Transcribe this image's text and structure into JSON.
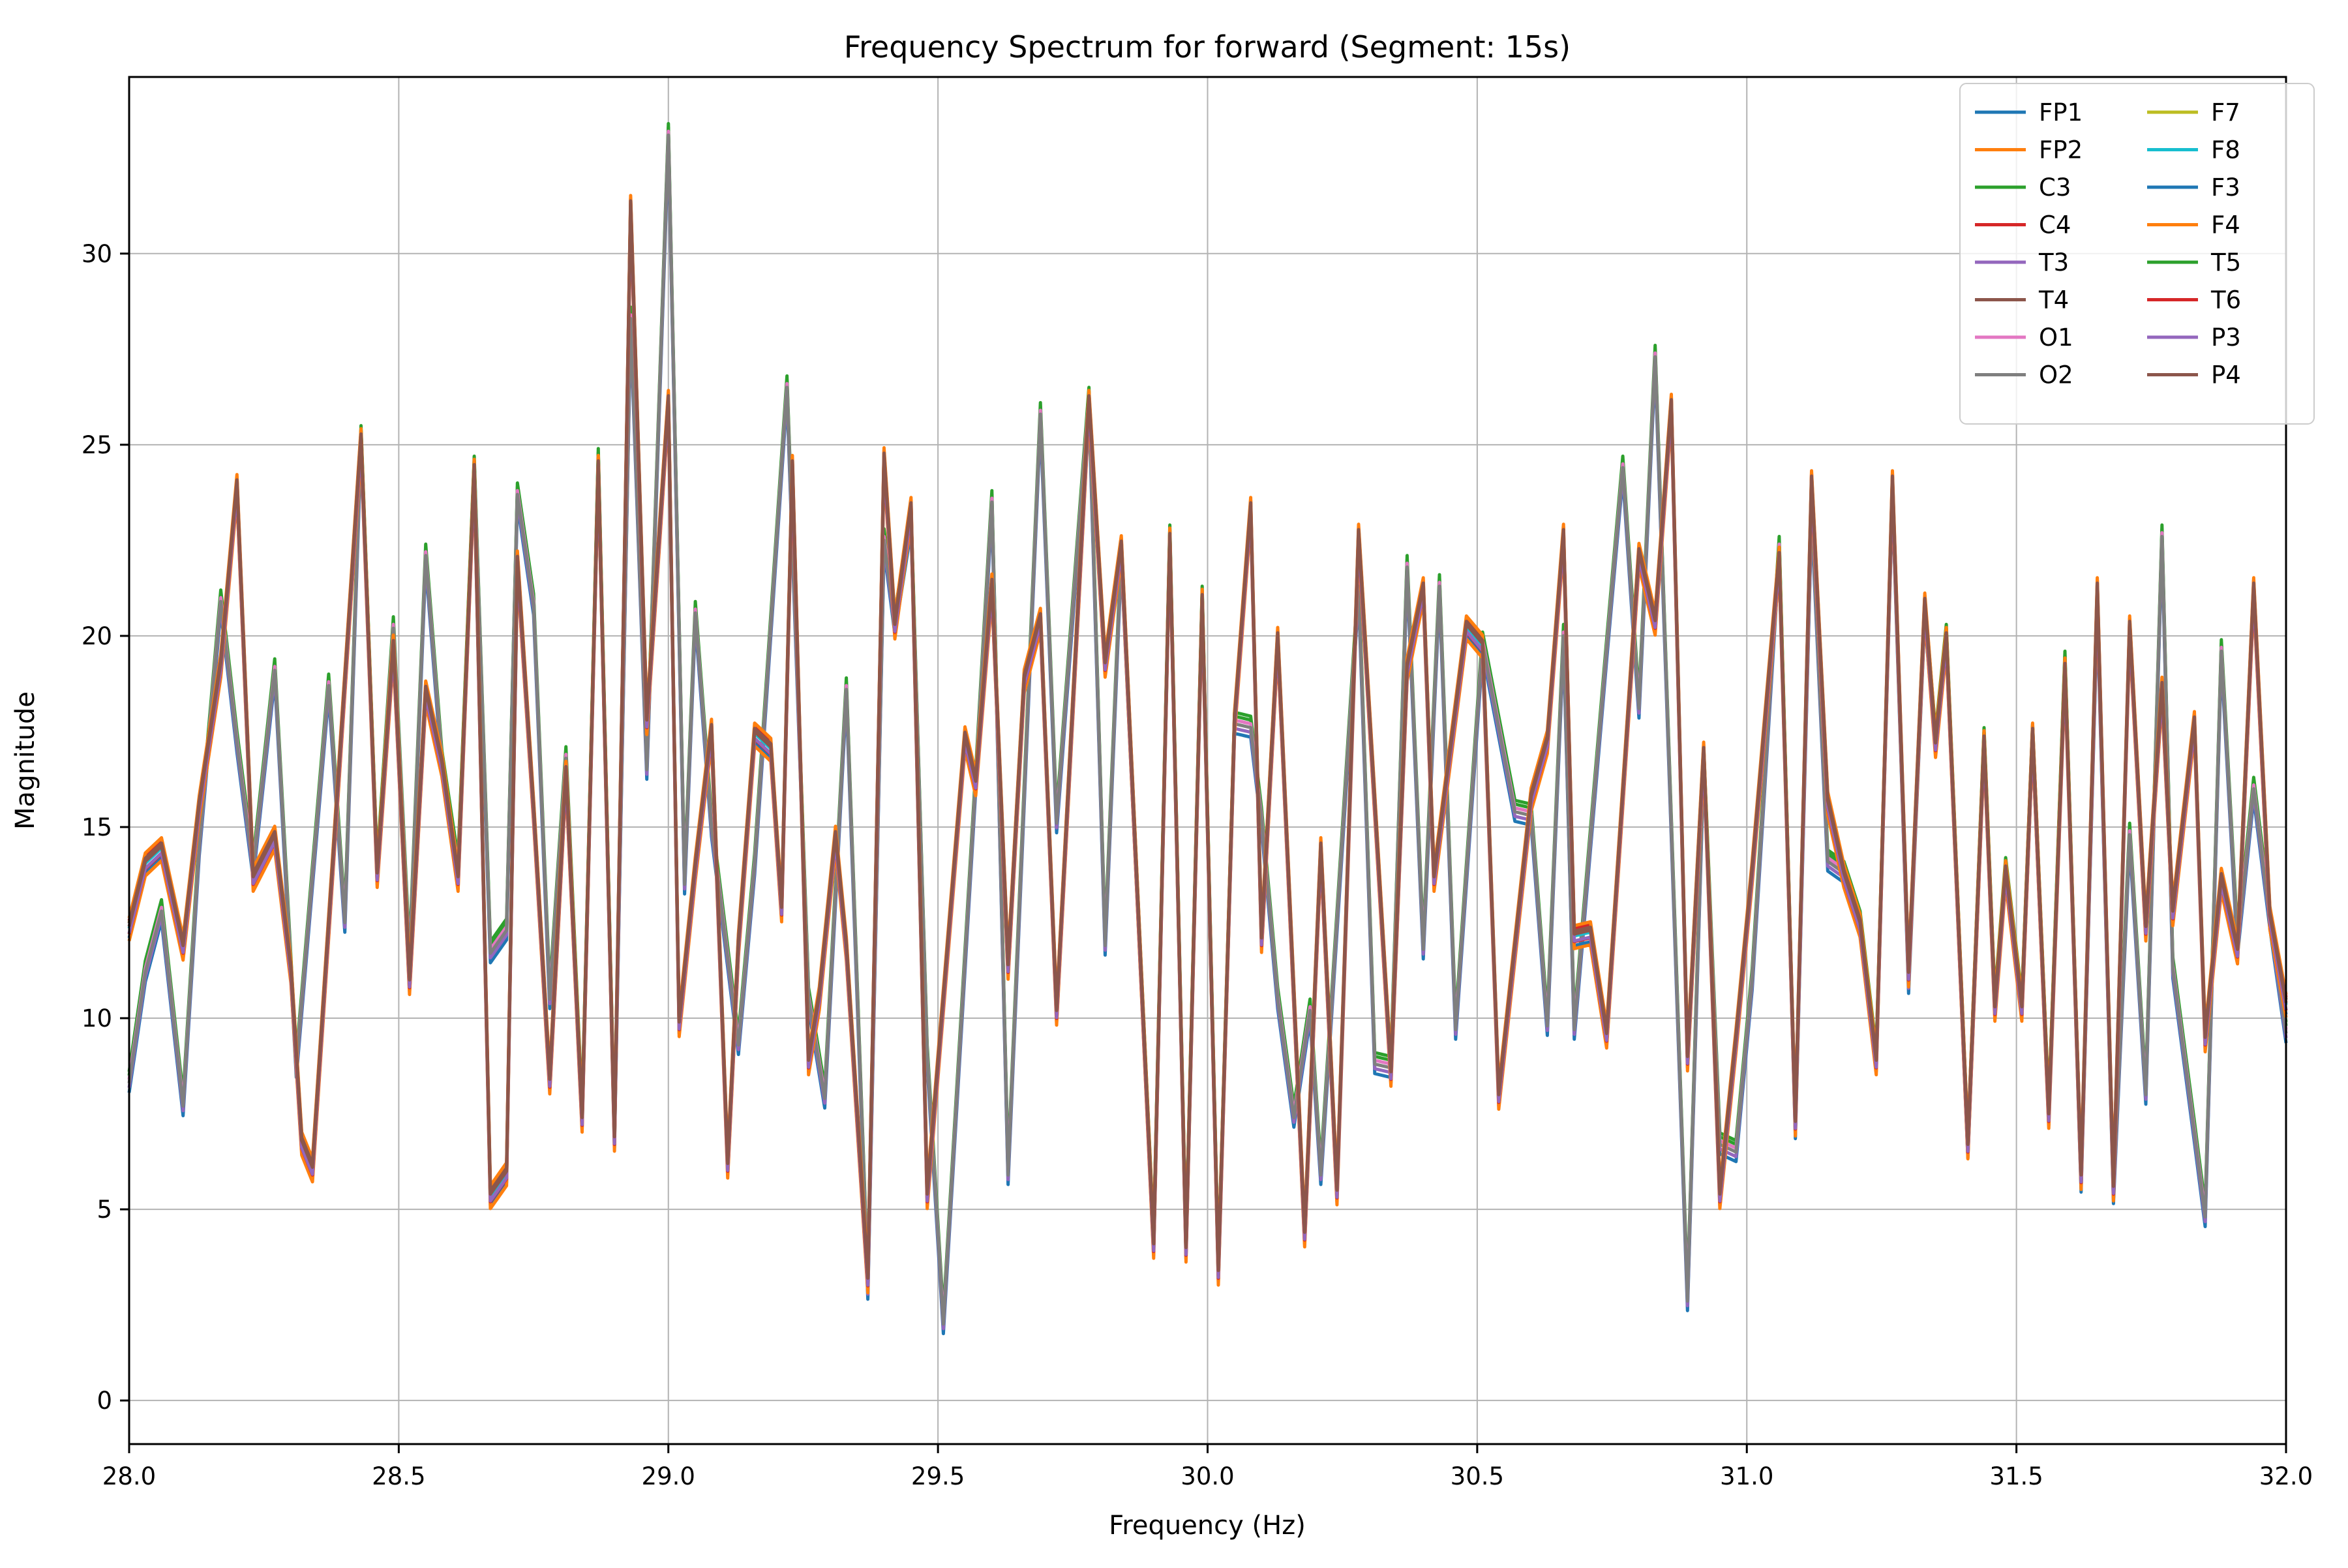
{
  "title": "Frequency Spectrum for forward (Segment: 15s)",
  "xlabel": "Frequency (Hz)",
  "ylabel": "Magnitude",
  "chart_data": {
    "type": "line",
    "title": "Frequency Spectrum for forward (Segment: 15s)",
    "xlabel": "Frequency (Hz)",
    "ylabel": "Magnitude",
    "xlim": [
      28.0,
      32.0
    ],
    "ylim": [
      -1.14,
      34.62
    ],
    "xticks": [
      28.0,
      28.5,
      29.0,
      29.5,
      30.0,
      30.5,
      31.0,
      31.5,
      32.0
    ],
    "xtick_labels": [
      "28.0",
      "28.5",
      "29.0",
      "29.5",
      "30.0",
      "30.5",
      "31.0",
      "31.5",
      "32.0"
    ],
    "yticks": [
      0,
      5,
      10,
      15,
      20,
      25,
      30
    ],
    "ytick_labels": [
      "0",
      "5",
      "10",
      "15",
      "20",
      "25",
      "30"
    ],
    "grid": true,
    "grid_color": "#b3b3b3",
    "legend_position": "upper right",
    "legend_columns": [
      [
        "FP1",
        "FP2",
        "C3",
        "C4",
        "T3",
        "T4",
        "O1",
        "O2"
      ],
      [
        "F7",
        "F8",
        "F3",
        "F4",
        "T5",
        "T6",
        "P3",
        "P4"
      ]
    ],
    "series": [
      {
        "name": "FP1",
        "color": "#1f77b4",
        "bundle": "main",
        "offset": -0.3
      },
      {
        "name": "FP2",
        "color": "#ff7f0e",
        "bundle": "main",
        "offset": -0.38
      },
      {
        "name": "C3",
        "color": "#2ca02c",
        "bundle": "occipital",
        "offset": 0.2
      },
      {
        "name": "C4",
        "color": "#d62728",
        "bundle": "main",
        "offset": 0.15
      },
      {
        "name": "T3",
        "color": "#9467bd",
        "bundle": "occipital",
        "offset": -0.12
      },
      {
        "name": "T4",
        "color": "#8c564b",
        "bundle": "main",
        "offset": 0.08
      },
      {
        "name": "O1",
        "color": "#e377c2",
        "bundle": "occipital",
        "offset": 0.1
      },
      {
        "name": "O2",
        "color": "#7f7f7f",
        "bundle": "occipital",
        "offset": 0.0
      },
      {
        "name": "F7",
        "color": "#bcbd22",
        "bundle": "main",
        "offset": 0.1
      },
      {
        "name": "F8",
        "color": "#17becf",
        "bundle": "main",
        "offset": -0.05
      },
      {
        "name": "F3",
        "color": "#1f77b4",
        "bundle": "occipital",
        "offset": -0.25
      },
      {
        "name": "F4",
        "color": "#ff7f0e",
        "bundle": "main",
        "offset": 0.22
      },
      {
        "name": "T5",
        "color": "#2ca02c",
        "bundle": "occipital",
        "offset": 0.3
      },
      {
        "name": "T6",
        "color": "#d62728",
        "bundle": "main",
        "offset": -0.2
      },
      {
        "name": "P3",
        "color": "#9467bd",
        "bundle": "main",
        "offset": -0.18
      },
      {
        "name": "P4",
        "color": "#8c564b",
        "bundle": "main",
        "offset": 0.0
      }
    ],
    "draw_order": [
      "C3",
      "T5",
      "F3",
      "T3",
      "O1",
      "O2",
      "F8",
      "F7",
      "FP1",
      "FP2",
      "T6",
      "C4",
      "F4",
      "P3",
      "T4",
      "P4"
    ],
    "bundles": {
      "main": [
        [
          28.0,
          12.4
        ],
        [
          28.03,
          14.1
        ],
        [
          28.06,
          14.5
        ],
        [
          28.1,
          11.9
        ],
        [
          28.13,
          15.6
        ],
        [
          28.17,
          19.3
        ],
        [
          28.2,
          24.0
        ],
        [
          28.23,
          13.7
        ],
        [
          28.27,
          14.8
        ],
        [
          28.3,
          11.3
        ],
        [
          28.32,
          6.8
        ],
        [
          28.34,
          6.1
        ],
        [
          28.43,
          25.2
        ],
        [
          28.46,
          13.8
        ],
        [
          28.49,
          19.8
        ],
        [
          28.52,
          11.0
        ],
        [
          28.55,
          18.6
        ],
        [
          28.58,
          16.7
        ],
        [
          28.61,
          13.7
        ],
        [
          28.64,
          24.4
        ],
        [
          28.67,
          5.4
        ],
        [
          28.7,
          6.0
        ],
        [
          28.72,
          22.0
        ],
        [
          28.75,
          15.5
        ],
        [
          28.78,
          8.4
        ],
        [
          28.81,
          16.5
        ],
        [
          28.84,
          7.4
        ],
        [
          28.87,
          24.5
        ],
        [
          28.9,
          6.9
        ],
        [
          28.93,
          31.3
        ],
        [
          28.96,
          17.8
        ],
        [
          29.0,
          26.2
        ],
        [
          29.02,
          9.9
        ],
        [
          29.05,
          14.0
        ],
        [
          29.08,
          17.6
        ],
        [
          29.11,
          6.2
        ],
        [
          29.13,
          12.0
        ],
        [
          29.16,
          17.5
        ],
        [
          29.19,
          17.1
        ],
        [
          29.21,
          12.9
        ],
        [
          29.23,
          24.5
        ],
        [
          29.26,
          8.9
        ],
        [
          29.28,
          10.6
        ],
        [
          29.31,
          14.8
        ],
        [
          29.33,
          11.9
        ],
        [
          29.37,
          3.2
        ],
        [
          29.4,
          24.7
        ],
        [
          29.42,
          20.3
        ],
        [
          29.45,
          23.4
        ],
        [
          29.48,
          5.4
        ],
        [
          29.55,
          17.4
        ],
        [
          29.57,
          16.2
        ],
        [
          29.6,
          21.4
        ],
        [
          29.63,
          11.4
        ],
        [
          29.66,
          18.9
        ],
        [
          29.69,
          20.5
        ],
        [
          29.72,
          10.2
        ],
        [
          29.78,
          26.2
        ],
        [
          29.81,
          19.3
        ],
        [
          29.84,
          22.4
        ],
        [
          29.9,
          4.1
        ],
        [
          29.93,
          22.6
        ],
        [
          29.96,
          4.0
        ],
        [
          29.99,
          21.0
        ],
        [
          30.02,
          3.4
        ],
        [
          30.05,
          17.8
        ],
        [
          30.08,
          23.4
        ],
        [
          30.1,
          12.1
        ],
        [
          30.13,
          20.0
        ],
        [
          30.18,
          4.4
        ],
        [
          30.21,
          14.5
        ],
        [
          30.24,
          5.5
        ],
        [
          30.28,
          22.7
        ],
        [
          30.34,
          8.6
        ],
        [
          30.37,
          19.2
        ],
        [
          30.4,
          21.3
        ],
        [
          30.42,
          13.7
        ],
        [
          30.48,
          20.3
        ],
        [
          30.51,
          19.8
        ],
        [
          30.54,
          8.0
        ],
        [
          30.6,
          15.8
        ],
        [
          30.63,
          17.3
        ],
        [
          30.66,
          22.7
        ],
        [
          30.68,
          12.2
        ],
        [
          30.71,
          12.3
        ],
        [
          30.74,
          9.6
        ],
        [
          30.8,
          22.2
        ],
        [
          30.83,
          20.4
        ],
        [
          30.86,
          26.1
        ],
        [
          30.89,
          9.0
        ],
        [
          30.92,
          17.0
        ],
        [
          30.95,
          5.4
        ],
        [
          30.98,
          9.5
        ],
        [
          31.01,
          13.9
        ],
        [
          31.06,
          22.1
        ],
        [
          31.09,
          7.3
        ],
        [
          31.12,
          24.1
        ],
        [
          31.15,
          15.7
        ],
        [
          31.18,
          13.8
        ],
        [
          31.21,
          12.5
        ],
        [
          31.24,
          8.9
        ],
        [
          31.27,
          24.1
        ],
        [
          31.3,
          11.2
        ],
        [
          31.33,
          20.9
        ],
        [
          31.35,
          17.2
        ],
        [
          31.37,
          20.0
        ],
        [
          31.41,
          6.7
        ],
        [
          31.44,
          17.3
        ],
        [
          31.46,
          10.3
        ],
        [
          31.48,
          13.9
        ],
        [
          31.51,
          10.3
        ],
        [
          31.53,
          17.5
        ],
        [
          31.56,
          7.5
        ],
        [
          31.59,
          19.2
        ],
        [
          31.62,
          5.9
        ],
        [
          31.65,
          21.3
        ],
        [
          31.68,
          5.6
        ],
        [
          31.71,
          20.3
        ],
        [
          31.74,
          12.4
        ],
        [
          31.77,
          18.7
        ],
        [
          31.79,
          12.8
        ],
        [
          31.83,
          17.8
        ],
        [
          31.85,
          9.5
        ],
        [
          31.88,
          13.7
        ],
        [
          31.91,
          11.8
        ],
        [
          31.94,
          21.3
        ],
        [
          31.97,
          12.7
        ],
        [
          32.0,
          10.4
        ]
      ],
      "occipital": [
        [
          28.0,
          8.3
        ],
        [
          28.03,
          11.2
        ],
        [
          28.06,
          12.8
        ],
        [
          28.1,
          7.7
        ],
        [
          28.13,
          14.5
        ],
        [
          28.17,
          20.9
        ],
        [
          28.2,
          17.2
        ],
        [
          28.23,
          13.9
        ],
        [
          28.27,
          19.1
        ],
        [
          28.31,
          8.7
        ],
        [
          28.37,
          18.7
        ],
        [
          28.4,
          12.5
        ],
        [
          28.43,
          25.2
        ],
        [
          28.46,
          13.8
        ],
        [
          28.49,
          20.2
        ],
        [
          28.52,
          11.5
        ],
        [
          28.55,
          22.1
        ],
        [
          28.58,
          16.7
        ],
        [
          28.61,
          13.9
        ],
        [
          28.64,
          24.4
        ],
        [
          28.67,
          11.7
        ],
        [
          28.7,
          12.3
        ],
        [
          28.72,
          23.7
        ],
        [
          28.75,
          20.8
        ],
        [
          28.78,
          10.5
        ],
        [
          28.81,
          16.8
        ],
        [
          28.84,
          7.4
        ],
        [
          28.87,
          24.6
        ],
        [
          28.9,
          6.9
        ],
        [
          28.93,
          28.3
        ],
        [
          28.96,
          16.5
        ],
        [
          29.0,
          33.1
        ],
        [
          29.03,
          13.5
        ],
        [
          29.05,
          20.6
        ],
        [
          29.08,
          15.0
        ],
        [
          29.13,
          9.3
        ],
        [
          29.16,
          14.0
        ],
        [
          29.22,
          26.5
        ],
        [
          29.26,
          10.5
        ],
        [
          29.29,
          7.9
        ],
        [
          29.33,
          18.6
        ],
        [
          29.37,
          2.9
        ],
        [
          29.4,
          22.5
        ],
        [
          29.42,
          20.3
        ],
        [
          29.45,
          23.0
        ],
        [
          29.48,
          9.0
        ],
        [
          29.51,
          2.0
        ],
        [
          29.57,
          16.2
        ],
        [
          29.6,
          23.5
        ],
        [
          29.63,
          5.9
        ],
        [
          29.69,
          25.8
        ],
        [
          29.72,
          15.1
        ],
        [
          29.78,
          26.2
        ],
        [
          29.81,
          11.9
        ],
        [
          29.84,
          22.2
        ],
        [
          29.9,
          4.1
        ],
        [
          29.93,
          22.6
        ],
        [
          29.96,
          4.0
        ],
        [
          29.99,
          21.0
        ],
        [
          30.02,
          3.4
        ],
        [
          30.05,
          17.7
        ],
        [
          30.08,
          17.6
        ],
        [
          30.1,
          15.2
        ],
        [
          30.13,
          10.5
        ],
        [
          30.16,
          7.4
        ],
        [
          30.19,
          10.2
        ],
        [
          30.21,
          5.9
        ],
        [
          30.28,
          21.3
        ],
        [
          30.31,
          8.8
        ],
        [
          30.34,
          8.7
        ],
        [
          30.37,
          21.8
        ],
        [
          30.4,
          11.8
        ],
        [
          30.43,
          21.3
        ],
        [
          30.46,
          9.7
        ],
        [
          30.51,
          19.8
        ],
        [
          30.57,
          15.4
        ],
        [
          30.6,
          15.3
        ],
        [
          30.63,
          9.8
        ],
        [
          30.66,
          20.0
        ],
        [
          30.68,
          9.7
        ],
        [
          30.74,
          19.6
        ],
        [
          30.77,
          24.4
        ],
        [
          30.8,
          18.1
        ],
        [
          30.83,
          27.3
        ],
        [
          30.89,
          2.6
        ],
        [
          30.92,
          16.8
        ],
        [
          30.95,
          6.7
        ],
        [
          30.98,
          6.5
        ],
        [
          31.01,
          11.0
        ],
        [
          31.06,
          22.3
        ],
        [
          31.09,
          7.1
        ],
        [
          31.12,
          23.3
        ],
        [
          31.15,
          14.1
        ],
        [
          31.18,
          13.8
        ],
        [
          31.21,
          12.5
        ],
        [
          31.24,
          8.9
        ],
        [
          31.27,
          23.8
        ],
        [
          31.3,
          10.9
        ],
        [
          31.33,
          20.7
        ],
        [
          31.35,
          17.2
        ],
        [
          31.37,
          20.0
        ],
        [
          31.41,
          6.6
        ],
        [
          31.44,
          17.3
        ],
        [
          31.46,
          10.3
        ],
        [
          31.48,
          13.9
        ],
        [
          31.51,
          10.3
        ],
        [
          31.53,
          17.4
        ],
        [
          31.56,
          7.5
        ],
        [
          31.59,
          19.3
        ],
        [
          31.62,
          5.7
        ],
        [
          31.65,
          20.8
        ],
        [
          31.68,
          5.4
        ],
        [
          31.71,
          14.8
        ],
        [
          31.74,
          8.0
        ],
        [
          31.77,
          22.6
        ],
        [
          31.79,
          11.3
        ],
        [
          31.83,
          7.0
        ],
        [
          31.85,
          4.8
        ],
        [
          31.88,
          19.6
        ],
        [
          31.91,
          11.9
        ],
        [
          31.94,
          16.0
        ],
        [
          31.97,
          12.6
        ],
        [
          32.0,
          9.6
        ]
      ]
    }
  }
}
